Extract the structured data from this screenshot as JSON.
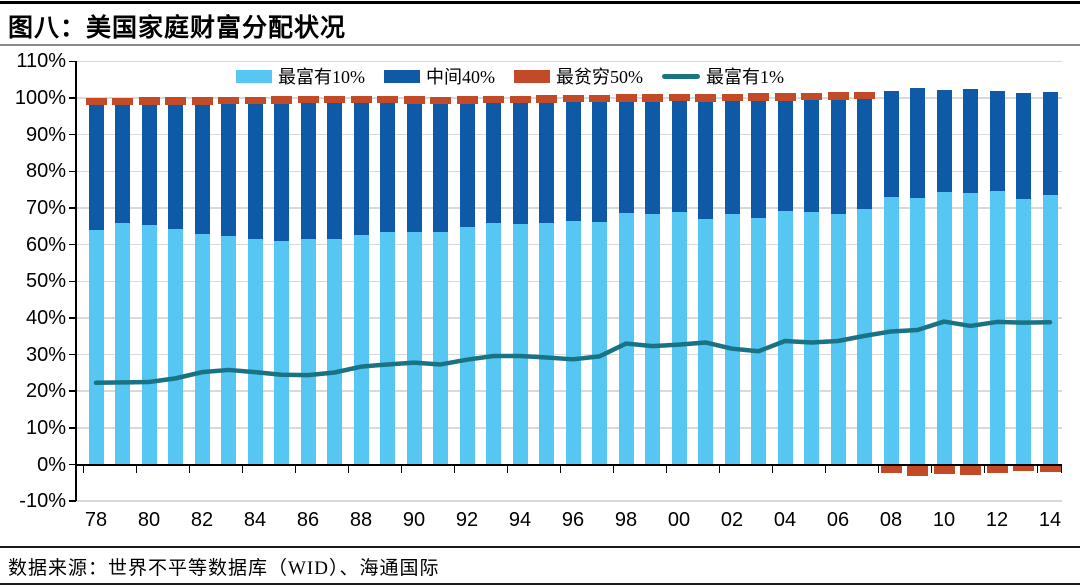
{
  "page": {
    "title": "图八：美国家庭财富分配状况",
    "source_note": "数据来源：世界不平等数据库（WID）、海通国际"
  },
  "chart_data": {
    "type": "bar",
    "subtype": "stacked-bars-with-line-overlay",
    "title": "图八：美国家庭财富分配状况",
    "xlabel": "",
    "ylabel": "",
    "ylim": [
      -10,
      110
    ],
    "y_tick_step": 10,
    "y_tick_format": "percent",
    "grid": "horizontal",
    "legend_position": "top-inside",
    "categories": [
      1978,
      1979,
      1980,
      1981,
      1982,
      1983,
      1984,
      1985,
      1986,
      1987,
      1988,
      1989,
      1990,
      1991,
      1992,
      1993,
      1994,
      1995,
      1996,
      1997,
      1998,
      1999,
      2000,
      2001,
      2002,
      2003,
      2004,
      2005,
      2006,
      2007,
      2008,
      2009,
      2010,
      2011,
      2012,
      2013,
      2014
    ],
    "x_tick_labels": [
      "78",
      "80",
      "82",
      "84",
      "86",
      "88",
      "90",
      "92",
      "94",
      "96",
      "98",
      "00",
      "02",
      "04",
      "06",
      "08",
      "10",
      "12",
      "14"
    ],
    "series": [
      {
        "name": "最富有10%",
        "type": "bar",
        "stacked": true,
        "color": "#55C7F2",
        "values": [
          64.0,
          65.8,
          65.3,
          64.2,
          62.8,
          62.3,
          61.6,
          61.0,
          61.4,
          61.5,
          62.5,
          63.5,
          63.4,
          63.4,
          64.7,
          65.8,
          65.6,
          65.9,
          66.5,
          66.3,
          68.5,
          68.4,
          68.9,
          67.1,
          68.3,
          67.3,
          69.1,
          68.8,
          68.4,
          69.7,
          73.0,
          72.8,
          74.3,
          74.1,
          74.6,
          72.4,
          73.5
        ]
      },
      {
        "name": "中间40%",
        "type": "bar",
        "stacked": true,
        "color": "#0E5AA7",
        "values": [
          34.0,
          32.2,
          32.8,
          33.9,
          35.4,
          36.0,
          36.7,
          37.4,
          37.1,
          37.0,
          36.1,
          35.0,
          35.0,
          34.9,
          33.7,
          32.7,
          33.0,
          32.8,
          32.3,
          32.6,
          30.5,
          30.6,
          30.2,
          31.9,
          30.8,
          31.9,
          30.2,
          30.6,
          31.1,
          29.9,
          28.9,
          30.0,
          27.9,
          28.3,
          27.3,
          28.9,
          28.1
        ]
      },
      {
        "name": "最贫穷50%",
        "type": "bar",
        "stacked": true,
        "color": "#C34A27",
        "values": [
          2.0,
          2.0,
          1.9,
          1.9,
          1.8,
          1.7,
          1.7,
          1.6,
          1.5,
          1.5,
          1.4,
          1.5,
          1.6,
          1.7,
          1.6,
          1.5,
          1.4,
          1.3,
          1.2,
          1.1,
          1.0,
          1.0,
          0.9,
          1.0,
          0.9,
          0.8,
          0.7,
          0.6,
          0.5,
          0.4,
          -1.9,
          -2.8,
          -2.2,
          -2.4,
          -1.9,
          -1.3,
          -1.6
        ]
      },
      {
        "name": "最富有1%",
        "type": "line",
        "color": "#1A7385",
        "values": [
          22.3,
          22.4,
          22.5,
          23.5,
          25.2,
          25.8,
          25.2,
          24.5,
          24.4,
          25.1,
          26.7,
          27.3,
          27.8,
          27.3,
          28.6,
          29.6,
          29.6,
          29.2,
          28.7,
          29.5,
          33.0,
          32.3,
          32.7,
          33.3,
          31.6,
          30.9,
          33.7,
          33.3,
          33.7,
          35.1,
          36.3,
          36.7,
          39.0,
          37.8,
          38.9,
          38.7,
          38.8
        ]
      }
    ],
    "colors": {
      "grid": "#D9D9D9",
      "axis": "#000000",
      "top10_bar": "#55C7F2",
      "mid40_bar": "#0E5AA7",
      "bottom50_bar": "#C34A27",
      "top1_line": "#1A7385"
    }
  }
}
